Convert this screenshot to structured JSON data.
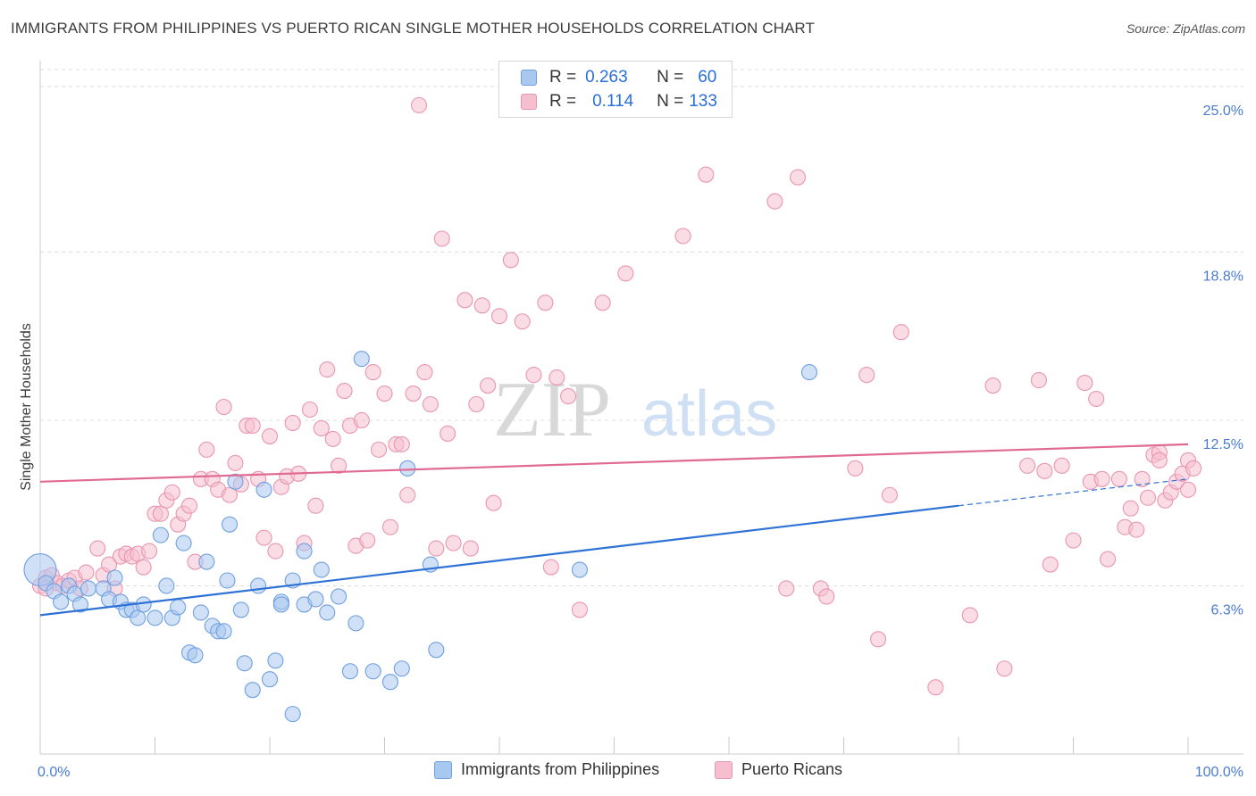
{
  "title": "IMMIGRANTS FROM PHILIPPINES VS PUERTO RICAN SINGLE MOTHER HOUSEHOLDS CORRELATION CHART",
  "source": "Source: ZipAtlas.com",
  "watermark": {
    "zip": "ZIP",
    "atlas": "atlas"
  },
  "colors": {
    "blue_fill": "#a9c8f0",
    "blue_stroke": "#6f9fe0",
    "blue_line": "#2f72d6",
    "pink_fill": "#f6bfd0",
    "pink_stroke": "#e995b1",
    "pink_line": "#e06a93",
    "tick_text": "#4a7bd0",
    "grid": "#dcdcdc"
  },
  "legend": {
    "rows": [
      {
        "r_label": "R =",
        "r_value": "0.263",
        "n_label": "N =",
        "n_value": "60",
        "color": "blue"
      },
      {
        "r_label": "R =",
        "r_value": "0.114",
        "n_label": "N =",
        "n_value": "133",
        "color": "pink"
      }
    ]
  },
  "bottom_legend": [
    {
      "label": "Immigrants from Philippines",
      "color": "blue"
    },
    {
      "label": "Puerto Ricans",
      "color": "pink"
    }
  ],
  "chart_data": {
    "type": "scatter",
    "title": "IMMIGRANTS FROM PHILIPPINES VS PUERTO RICAN SINGLE MOTHER HOUSEHOLDS CORRELATION CHART",
    "xlabel": "",
    "ylabel": "Single Mother Households",
    "xlim": [
      0,
      100
    ],
    "ylim": [
      0,
      25.9
    ],
    "x_tick_labels": [
      "0.0%",
      "100.0%"
    ],
    "y_ticks": [
      6.3,
      12.5,
      18.8,
      25.0
    ],
    "y_tick_labels": [
      "6.3%",
      "12.5%",
      "18.8%",
      "25.0%"
    ],
    "grid": true,
    "series": [
      {
        "name": "Immigrants from Philippines",
        "color": "blue",
        "trend": {
          "x": [
            0,
            80
          ],
          "y": [
            5.2,
            9.3
          ],
          "dashed_to": [
            100,
            10.3
          ]
        },
        "points": [
          [
            0,
            6.9
          ],
          [
            0.5,
            6.4
          ],
          [
            1.2,
            6.1
          ],
          [
            1.8,
            5.7
          ],
          [
            2.5,
            6.3
          ],
          [
            3,
            6.0
          ],
          [
            3.5,
            5.6
          ],
          [
            4.2,
            6.2
          ],
          [
            5.5,
            6.2
          ],
          [
            6,
            5.8
          ],
          [
            6.5,
            6.6
          ],
          [
            7,
            5.7
          ],
          [
            7.5,
            5.4
          ],
          [
            8,
            5.4
          ],
          [
            8.5,
            5.1
          ],
          [
            9,
            5.6
          ],
          [
            10,
            5.1
          ],
          [
            10.5,
            8.2
          ],
          [
            11,
            6.3
          ],
          [
            11.5,
            5.1
          ],
          [
            12,
            5.5
          ],
          [
            12.5,
            7.9
          ],
          [
            13,
            3.8
          ],
          [
            13.5,
            3.7
          ],
          [
            14,
            5.3
          ],
          [
            14.5,
            7.2
          ],
          [
            15,
            4.8
          ],
          [
            15.5,
            4.6
          ],
          [
            16,
            4.6
          ],
          [
            16.3,
            6.5
          ],
          [
            16.5,
            8.6
          ],
          [
            17,
            10.2
          ],
          [
            17.5,
            5.4
          ],
          [
            17.8,
            3.4
          ],
          [
            18.5,
            2.4
          ],
          [
            19,
            6.3
          ],
          [
            19.5,
            9.9
          ],
          [
            20,
            2.8
          ],
          [
            20.5,
            3.5
          ],
          [
            21,
            5.7
          ],
          [
            22,
            1.5
          ],
          [
            22,
            6.5
          ],
          [
            23,
            5.6
          ],
          [
            23,
            7.6
          ],
          [
            24,
            5.8
          ],
          [
            24.5,
            6.9
          ],
          [
            25,
            5.3
          ],
          [
            26,
            5.9
          ],
          [
            27,
            3.1
          ],
          [
            27.5,
            4.9
          ],
          [
            28,
            14.8
          ],
          [
            29,
            3.1
          ],
          [
            30.5,
            2.7
          ],
          [
            31.5,
            3.2
          ],
          [
            32,
            10.7
          ],
          [
            34,
            7.1
          ],
          [
            34.5,
            3.9
          ],
          [
            47,
            6.9
          ],
          [
            67,
            14.3
          ],
          [
            21,
            5.6
          ]
        ]
      },
      {
        "name": "Puerto Ricans",
        "color": "pink",
        "trend": {
          "x": [
            0,
            100
          ],
          "y": [
            10.2,
            11.6
          ]
        },
        "points": [
          [
            0,
            6.3
          ],
          [
            0.5,
            6.6
          ],
          [
            1,
            6.7
          ],
          [
            1.5,
            6.4
          ],
          [
            2,
            6.3
          ],
          [
            2.5,
            6.5
          ],
          [
            3,
            6.6
          ],
          [
            3.5,
            6.2
          ],
          [
            4,
            6.8
          ],
          [
            5,
            7.7
          ],
          [
            5.5,
            6.7
          ],
          [
            6,
            7.1
          ],
          [
            6.5,
            6.2
          ],
          [
            7,
            7.4
          ],
          [
            7.5,
            7.5
          ],
          [
            8,
            7.4
          ],
          [
            8.5,
            7.5
          ],
          [
            9,
            7.0
          ],
          [
            9.5,
            7.6
          ],
          [
            10,
            9.0
          ],
          [
            10.5,
            9.0
          ],
          [
            11,
            9.5
          ],
          [
            11.5,
            9.8
          ],
          [
            12,
            8.6
          ],
          [
            12.5,
            9.0
          ],
          [
            13,
            9.3
          ],
          [
            13.5,
            7.2
          ],
          [
            14,
            10.3
          ],
          [
            14.5,
            11.4
          ],
          [
            15,
            10.3
          ],
          [
            15.5,
            9.9
          ],
          [
            16,
            13.0
          ],
          [
            16.5,
            9.7
          ],
          [
            17,
            10.9
          ],
          [
            17.5,
            10.1
          ],
          [
            18,
            12.3
          ],
          [
            18.5,
            12.3
          ],
          [
            19,
            10.3
          ],
          [
            19.5,
            8.1
          ],
          [
            20,
            11.9
          ],
          [
            20.5,
            7.6
          ],
          [
            21,
            10.0
          ],
          [
            21.5,
            10.4
          ],
          [
            22,
            12.4
          ],
          [
            22.5,
            10.5
          ],
          [
            23,
            7.9
          ],
          [
            23.5,
            12.9
          ],
          [
            24,
            9.3
          ],
          [
            24.5,
            12.2
          ],
          [
            25,
            14.4
          ],
          [
            25.5,
            11.8
          ],
          [
            26,
            10.8
          ],
          [
            26.5,
            13.6
          ],
          [
            27,
            12.3
          ],
          [
            27.5,
            7.8
          ],
          [
            28,
            12.5
          ],
          [
            28.5,
            8.0
          ],
          [
            29,
            14.3
          ],
          [
            29.5,
            11.4
          ],
          [
            30,
            13.5
          ],
          [
            30.5,
            8.5
          ],
          [
            31,
            11.6
          ],
          [
            31.5,
            11.6
          ],
          [
            32,
            9.7
          ],
          [
            32.5,
            13.5
          ],
          [
            33,
            24.3
          ],
          [
            33.5,
            14.3
          ],
          [
            34,
            13.1
          ],
          [
            34.5,
            7.7
          ],
          [
            35,
            19.3
          ],
          [
            35.5,
            12.0
          ],
          [
            36,
            7.9
          ],
          [
            37,
            17.0
          ],
          [
            37.5,
            7.7
          ],
          [
            38,
            13.1
          ],
          [
            38.5,
            16.8
          ],
          [
            39,
            13.8
          ],
          [
            39.5,
            9.4
          ],
          [
            40,
            16.4
          ],
          [
            41,
            18.5
          ],
          [
            42,
            16.2
          ],
          [
            43,
            14.2
          ],
          [
            44,
            16.9
          ],
          [
            44.5,
            7.0
          ],
          [
            45,
            14.1
          ],
          [
            46,
            13.4
          ],
          [
            47,
            5.4
          ],
          [
            49,
            16.9
          ],
          [
            51,
            18.0
          ],
          [
            56,
            19.4
          ],
          [
            58,
            21.7
          ],
          [
            64,
            20.7
          ],
          [
            65,
            6.2
          ],
          [
            66,
            21.6
          ],
          [
            68,
            6.2
          ],
          [
            68.5,
            5.9
          ],
          [
            71,
            10.7
          ],
          [
            72,
            14.2
          ],
          [
            73,
            4.3
          ],
          [
            74,
            9.7
          ],
          [
            75,
            15.8
          ],
          [
            78,
            2.5
          ],
          [
            81,
            5.2
          ],
          [
            83,
            13.8
          ],
          [
            84,
            3.2
          ],
          [
            86,
            10.8
          ],
          [
            87,
            14.0
          ],
          [
            87.5,
            10.6
          ],
          [
            88,
            7.1
          ],
          [
            89,
            10.8
          ],
          [
            90,
            8.0
          ],
          [
            91,
            13.9
          ],
          [
            91.5,
            10.2
          ],
          [
            92,
            13.3
          ],
          [
            92.5,
            10.3
          ],
          [
            93,
            7.3
          ],
          [
            94,
            10.3
          ],
          [
            94.5,
            8.5
          ],
          [
            95,
            9.2
          ],
          [
            95.5,
            8.4
          ],
          [
            96,
            10.3
          ],
          [
            96.5,
            9.6
          ],
          [
            97,
            11.2
          ],
          [
            97.5,
            11.3
          ],
          [
            98,
            9.5
          ],
          [
            98.5,
            9.8
          ],
          [
            99,
            10.2
          ],
          [
            99.5,
            10.5
          ],
          [
            100,
            11.0
          ],
          [
            100,
            9.9
          ],
          [
            100.5,
            10.7
          ],
          [
            97.5,
            11.0
          ],
          [
            0.5,
            6.2
          ]
        ]
      }
    ]
  }
}
